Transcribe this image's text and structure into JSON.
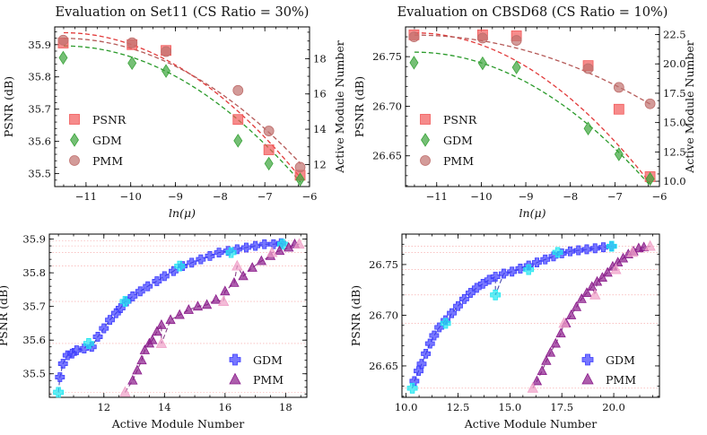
{
  "chart_data": [
    {
      "id": "set11",
      "type": "scatter",
      "title": "Evaluation on Set11 (CS Ratio = 30%)",
      "xlabel": "ln(μ)",
      "ylabel": "PSNR (dB)",
      "ylabel_right": "Active Module Number",
      "xlim": [
        -11.7,
        -6.0
      ],
      "ylim": [
        35.46,
        35.955
      ],
      "ylim_right": [
        10.75,
        19.8
      ],
      "xticks": [
        -11,
        -10,
        -9,
        -8,
        -7,
        -6
      ],
      "xtick_labels": [
        "−11",
        "−10",
        "−9",
        "−8",
        "−7",
        "−6"
      ],
      "yticks": [
        35.5,
        35.6,
        35.7,
        35.8,
        35.9
      ],
      "ytick_labels": [
        "35.5",
        "35.6",
        "35.7",
        "35.8",
        "35.9"
      ],
      "yticks_right": [
        12,
        14,
        16,
        18
      ],
      "ytick_labels_right": [
        "12",
        "14",
        "16",
        "18"
      ],
      "legend_position": "lower-left",
      "series": [
        {
          "name": "PSNR",
          "axis": "left",
          "marker": "square",
          "color": "#f25a5a",
          "x": [
            -11.51,
            -9.97,
            -9.21,
            -7.6,
            -6.91,
            -6.21
          ],
          "y": [
            35.905,
            35.9,
            35.882,
            35.668,
            35.574,
            35.495
          ]
        },
        {
          "name": "GDM",
          "axis": "right",
          "marker": "diamond",
          "color": "#3aa43a",
          "x": [
            -11.51,
            -9.97,
            -9.21,
            -7.6,
            -6.91,
            -6.21
          ],
          "y": [
            18.05,
            17.75,
            17.3,
            13.35,
            12.05,
            11.15
          ]
        },
        {
          "name": "PMM",
          "axis": "right",
          "marker": "circle",
          "color": "#c0706e",
          "x": [
            -11.51,
            -9.97,
            -9.21,
            -7.6,
            -6.91,
            -6.21
          ],
          "y": [
            19.05,
            18.9,
            18.4,
            16.2,
            13.9,
            11.85
          ]
        }
      ],
      "fits": [
        {
          "series": "PSNR",
          "color": "#e23a3a",
          "y_start": 35.937,
          "y_end": 35.487
        },
        {
          "series": "GDM",
          "color": "#2a9a2a",
          "y_start": 18.72,
          "y_end": 11.0
        },
        {
          "series": "PMM",
          "color": "#b55a58",
          "y_start": 19.15,
          "y_end": 12.05
        }
      ]
    },
    {
      "id": "cbsd68",
      "type": "scatter",
      "title": "Evaluation on CBSD68 (CS Ratio = 10%)",
      "xlabel": "ln(μ)",
      "ylabel": "PSNR (dB)",
      "ylabel_right": "Active Module Number",
      "xlim": [
        -11.7,
        -6.0
      ],
      "ylim": [
        26.619,
        26.78
      ],
      "ylim_right": [
        9.55,
        23.15
      ],
      "xticks": [
        -11,
        -10,
        -9,
        -8,
        -7,
        -6
      ],
      "xtick_labels": [
        "−11",
        "−10",
        "−9",
        "−8",
        "−7",
        "−6"
      ],
      "yticks": [
        26.65,
        26.7,
        26.75
      ],
      "ytick_labels": [
        "26.65",
        "26.70",
        "26.75"
      ],
      "yticks_right": [
        10.0,
        12.5,
        15.0,
        17.5,
        20.0,
        22.5
      ],
      "ytick_labels_right": [
        "10.0",
        "12.5",
        "15.0",
        "17.5",
        "20.0",
        "22.5"
      ],
      "legend_position": "lower-left",
      "series": [
        {
          "name": "PSNR",
          "axis": "left",
          "marker": "square",
          "color": "#f25a5a",
          "x": [
            -11.51,
            -9.97,
            -9.21,
            -7.6,
            -6.91,
            -6.21
          ],
          "y": [
            26.772,
            26.772,
            26.771,
            26.741,
            26.697,
            26.629
          ]
        },
        {
          "name": "GDM",
          "axis": "right",
          "marker": "diamond",
          "color": "#3aa43a",
          "x": [
            -11.51,
            -9.97,
            -9.21,
            -7.6,
            -6.91,
            -6.21
          ],
          "y": [
            20.1,
            20.05,
            19.7,
            14.5,
            12.3,
            10.2
          ]
        },
        {
          "name": "PMM",
          "axis": "right",
          "marker": "circle",
          "color": "#c0706e",
          "x": [
            -11.51,
            -9.97,
            -9.21,
            -7.6,
            -6.91,
            -6.21
          ],
          "y": [
            22.3,
            22.2,
            22.0,
            19.6,
            18.0,
            16.6
          ]
        }
      ],
      "fits": [
        {
          "series": "PSNR",
          "color": "#e23a3a",
          "y_start": 26.774,
          "y_end": 26.622
        },
        {
          "series": "GDM",
          "color": "#2a9a2a",
          "y_start": 21.0,
          "y_end": 9.6
        },
        {
          "series": "PMM",
          "color": "#b55a58",
          "y_start": 22.45,
          "y_end": 16.55
        }
      ]
    },
    {
      "id": "set11-modules",
      "type": "scatter",
      "title": "",
      "xlabel": "Active Module Number",
      "ylabel": "PSNR (dB)",
      "xlim": [
        10.2,
        18.7
      ],
      "ylim": [
        35.43,
        35.915
      ],
      "xticks": [
        12,
        14,
        16,
        18
      ],
      "xtick_labels": [
        "12",
        "14",
        "16",
        "18"
      ],
      "yticks": [
        35.5,
        35.6,
        35.7,
        35.8,
        35.9
      ],
      "ytick_labels": [
        "35.5",
        "35.6",
        "35.7",
        "35.8",
        "35.9"
      ],
      "legend_position": "lower-right",
      "guides_y": [
        35.895,
        35.88,
        35.86,
        35.82,
        35.715,
        35.59,
        35.445
      ],
      "series": [
        {
          "name": "GDM",
          "marker": "plus",
          "color": "#3d3dff",
          "points": [
            [
              10.55,
              35.49
            ],
            [
              10.65,
              35.53
            ],
            [
              10.8,
              35.555
            ],
            [
              10.95,
              35.56
            ],
            [
              11.1,
              35.57
            ],
            [
              11.35,
              35.575
            ],
            [
              11.6,
              35.58
            ],
            [
              11.8,
              35.61
            ],
            [
              12.0,
              35.635
            ],
            [
              12.2,
              35.66
            ],
            [
              12.4,
              35.68
            ],
            [
              12.55,
              35.695
            ],
            [
              12.75,
              35.715
            ],
            [
              12.95,
              35.73
            ],
            [
              13.2,
              35.745
            ],
            [
              13.45,
              35.76
            ],
            [
              13.75,
              35.775
            ],
            [
              14.0,
              35.79
            ],
            [
              14.3,
              35.805
            ],
            [
              14.6,
              35.82
            ],
            [
              14.9,
              35.83
            ],
            [
              15.2,
              35.84
            ],
            [
              15.5,
              35.85
            ],
            [
              15.8,
              35.86
            ],
            [
              16.1,
              35.865
            ],
            [
              16.4,
              35.87
            ],
            [
              16.7,
              35.875
            ],
            [
              17.0,
              35.88
            ],
            [
              17.3,
              35.885
            ],
            [
              17.6,
              35.885
            ],
            [
              17.85,
              35.888
            ]
          ],
          "highlight": [
            [
              10.5,
              35.445
            ],
            [
              11.5,
              35.59
            ],
            [
              12.7,
              35.715
            ],
            [
              14.5,
              35.82
            ],
            [
              16.2,
              35.86
            ],
            [
              17.9,
              35.885
            ]
          ]
        },
        {
          "name": "PMM",
          "marker": "triangle",
          "color": "#8a1a8a",
          "points": [
            [
              12.95,
              35.48
            ],
            [
              13.1,
              35.51
            ],
            [
              13.25,
              35.54
            ],
            [
              13.35,
              35.57
            ],
            [
              13.5,
              35.59
            ],
            [
              13.6,
              35.6
            ],
            [
              13.75,
              35.625
            ],
            [
              13.9,
              35.645
            ],
            [
              14.2,
              35.66
            ],
            [
              14.5,
              35.675
            ],
            [
              14.8,
              35.69
            ],
            [
              15.1,
              35.7
            ],
            [
              15.4,
              35.705
            ],
            [
              15.7,
              35.72
            ],
            [
              16.0,
              35.745
            ],
            [
              16.3,
              35.77
            ],
            [
              16.6,
              35.79
            ],
            [
              16.9,
              35.815
            ],
            [
              17.2,
              35.835
            ],
            [
              17.5,
              35.85
            ],
            [
              17.8,
              35.865
            ],
            [
              18.1,
              35.875
            ],
            [
              18.3,
              35.885
            ]
          ],
          "highlight": [
            [
              12.7,
              35.445
            ],
            [
              13.9,
              35.59
            ],
            [
              15.95,
              35.715
            ],
            [
              16.4,
              35.82
            ],
            [
              17.55,
              35.86
            ],
            [
              18.45,
              35.885
            ]
          ]
        }
      ],
      "fits": [
        {
          "series": "GDM",
          "color": "#1a1a9a",
          "x_start": 10.55,
          "x_end": 18.0
        },
        {
          "series": "PMM",
          "color": "#6a106a",
          "x_start": 12.75,
          "x_end": 18.55
        }
      ]
    },
    {
      "id": "cbsd68-modules",
      "type": "scatter",
      "title": "",
      "xlabel": "Active Module Number",
      "ylabel": "PSNR (dB)",
      "xlim": [
        9.8,
        22.2
      ],
      "ylim": [
        26.619,
        26.78
      ],
      "xticks": [
        10.0,
        12.5,
        15.0,
        17.5,
        20.0
      ],
      "xtick_labels": [
        "10.0",
        "12.5",
        "15.0",
        "17.5",
        "20.0"
      ],
      "yticks": [
        26.65,
        26.7,
        26.75
      ],
      "ytick_labels": [
        "26.65",
        "26.70",
        "26.75"
      ],
      "legend_position": "lower-right",
      "guides_y": [
        26.768,
        26.762,
        26.745,
        26.72,
        26.692,
        26.628
      ],
      "series": [
        {
          "name": "GDM",
          "marker": "plus",
          "color": "#3d3dff",
          "points": [
            [
              10.4,
              26.635
            ],
            [
              10.6,
              26.645
            ],
            [
              10.75,
              26.652
            ],
            [
              10.95,
              26.662
            ],
            [
              11.15,
              26.672
            ],
            [
              11.35,
              26.68
            ],
            [
              11.6,
              26.688
            ],
            [
              11.9,
              26.695
            ],
            [
              12.2,
              26.702
            ],
            [
              12.5,
              26.709
            ],
            [
              12.8,
              26.716
            ],
            [
              13.1,
              26.722
            ],
            [
              13.4,
              26.727
            ],
            [
              13.7,
              26.731
            ],
            [
              14.0,
              26.735
            ],
            [
              14.3,
              26.738
            ],
            [
              14.7,
              26.741
            ],
            [
              15.1,
              26.743
            ],
            [
              15.5,
              26.746
            ],
            [
              15.9,
              26.749
            ],
            [
              16.3,
              26.752
            ],
            [
              16.7,
              26.755
            ],
            [
              17.1,
              26.758
            ],
            [
              17.5,
              26.761
            ],
            [
              17.9,
              26.763
            ],
            [
              18.3,
              26.764
            ],
            [
              18.7,
              26.765
            ],
            [
              19.1,
              26.766
            ],
            [
              19.5,
              26.767
            ],
            [
              19.9,
              26.768
            ]
          ],
          "highlight": [
            [
              10.3,
              26.628
            ],
            [
              11.9,
              26.692
            ],
            [
              14.3,
              26.72
            ],
            [
              15.9,
              26.745
            ],
            [
              17.3,
              26.762
            ],
            [
              19.9,
              26.768
            ]
          ]
        },
        {
          "name": "PMM",
          "marker": "triangle",
          "color": "#8a1a8a",
          "points": [
            [
              16.3,
              26.635
            ],
            [
              16.55,
              26.645
            ],
            [
              16.75,
              26.655
            ],
            [
              16.95,
              26.663
            ],
            [
              17.2,
              26.672
            ],
            [
              17.45,
              26.682
            ],
            [
              17.7,
              26.692
            ],
            [
              17.95,
              26.7
            ],
            [
              18.2,
              26.708
            ],
            [
              18.45,
              26.716
            ],
            [
              18.7,
              26.722
            ],
            [
              18.95,
              26.728
            ],
            [
              19.2,
              26.733
            ],
            [
              19.45,
              26.737
            ],
            [
              19.7,
              26.742
            ],
            [
              19.95,
              26.748
            ],
            [
              20.2,
              26.752
            ],
            [
              20.45,
              26.756
            ],
            [
              20.7,
              26.76
            ],
            [
              20.95,
              26.763
            ],
            [
              21.2,
              26.766
            ],
            [
              21.45,
              26.767
            ]
          ],
          "highlight": [
            [
              16.1,
              26.628
            ],
            [
              17.6,
              26.692
            ],
            [
              19.1,
              26.72
            ],
            [
              20.1,
              26.745
            ],
            [
              20.9,
              26.762
            ],
            [
              21.75,
              26.768
            ]
          ]
        }
      ],
      "fits": [
        {
          "series": "GDM",
          "color": "#1a1a9a",
          "x_start": 10.3,
          "x_end": 20.0
        },
        {
          "series": "PMM",
          "color": "#6a106a",
          "x_start": 16.1,
          "x_end": 21.85
        }
      ]
    }
  ]
}
